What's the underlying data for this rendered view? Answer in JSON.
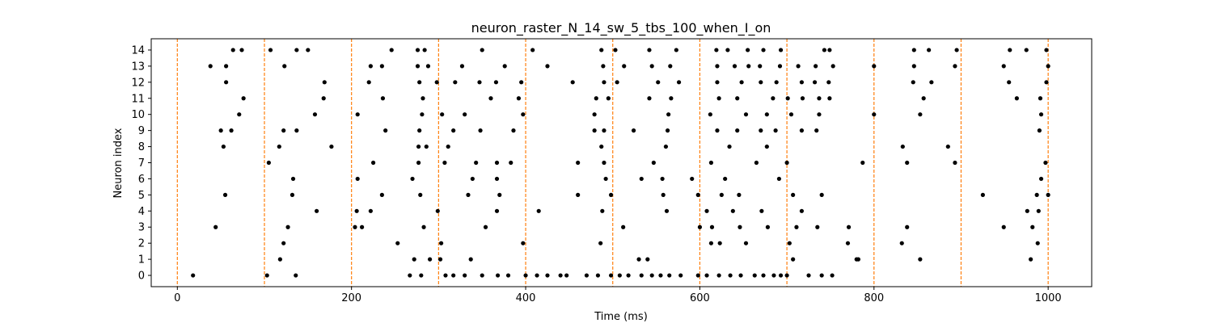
{
  "chart_data": {
    "type": "scatter",
    "title": "neuron_raster_N_14_sw_5_tbs_100_when_I_on",
    "xlabel": "Time (ms)",
    "ylabel": "Neuron index",
    "xlim": [
      -30,
      1050
    ],
    "ylim": [
      -0.7,
      14.7
    ],
    "x_ticks": [
      "0",
      "200",
      "400",
      "600",
      "800",
      "1000"
    ],
    "y_ticks": [
      "0",
      "1",
      "2",
      "3",
      "4",
      "5",
      "6",
      "7",
      "8",
      "9",
      "10",
      "11",
      "12",
      "13",
      "14"
    ],
    "grid": false,
    "marker_color": "#000000",
    "vline_color": "#ff7f0e",
    "vlines": [
      0,
      100,
      200,
      300,
      400,
      500,
      600,
      700,
      800,
      900,
      1000
    ],
    "series": [
      {
        "neuron": 0,
        "times": [
          18,
          103,
          136,
          267,
          280,
          308,
          317,
          330,
          350,
          368,
          380,
          400,
          413,
          425,
          440,
          447,
          470,
          483,
          498,
          508,
          518,
          533,
          545,
          555,
          565,
          578,
          598,
          608,
          622,
          635,
          647,
          663,
          673,
          685,
          693,
          700,
          725,
          740,
          752
        ]
      },
      {
        "neuron": 1,
        "times": [
          118,
          272,
          290,
          302,
          337,
          530,
          540,
          707,
          782,
          780,
          853,
          980
        ]
      },
      {
        "neuron": 2,
        "times": [
          122,
          253,
          303,
          397,
          486,
          613,
          623,
          653,
          703,
          770,
          832,
          988
        ]
      },
      {
        "neuron": 3,
        "times": [
          44,
          127,
          204,
          212,
          283,
          354,
          512,
          600,
          614,
          646,
          678,
          711,
          735,
          771,
          838,
          949,
          982
        ]
      },
      {
        "neuron": 4,
        "times": [
          160,
          206,
          222,
          299,
          367,
          415,
          488,
          562,
          608,
          638,
          671,
          717,
          976,
          989
        ]
      },
      {
        "neuron": 5,
        "times": [
          55,
          132,
          235,
          279,
          334,
          370,
          460,
          498,
          558,
          598,
          625,
          645,
          707,
          740,
          925,
          987,
          1000
        ]
      },
      {
        "neuron": 6,
        "times": [
          133,
          207,
          270,
          339,
          367,
          492,
          533,
          557,
          591,
          629,
          691,
          992
        ]
      },
      {
        "neuron": 7,
        "times": [
          105,
          225,
          277,
          307,
          343,
          367,
          383,
          460,
          490,
          547,
          613,
          665,
          700,
          787,
          838,
          893,
          997
        ]
      },
      {
        "neuron": 8,
        "times": [
          53,
          117,
          177,
          277,
          286,
          311,
          487,
          561,
          634,
          677,
          833,
          885
        ]
      },
      {
        "neuron": 9,
        "times": [
          50,
          62,
          122,
          137,
          239,
          278,
          317,
          348,
          386,
          479,
          490,
          524,
          563,
          620,
          643,
          670,
          687,
          717,
          734,
          990
        ]
      },
      {
        "neuron": 10,
        "times": [
          71,
          158,
          207,
          281,
          304,
          330,
          397,
          479,
          564,
          612,
          653,
          677,
          705,
          737,
          800,
          853,
          992
        ]
      },
      {
        "neuron": 11,
        "times": [
          76,
          168,
          236,
          282,
          360,
          392,
          481,
          495,
          542,
          567,
          622,
          643,
          684,
          701,
          718,
          737,
          749,
          857,
          964,
          991
        ]
      },
      {
        "neuron": 12,
        "times": [
          56,
          169,
          220,
          278,
          298,
          319,
          347,
          366,
          395,
          454,
          490,
          505,
          552,
          576,
          620,
          648,
          670,
          688,
          717,
          732,
          748,
          845,
          866,
          955,
          998
        ]
      },
      {
        "neuron": 13,
        "times": [
          38,
          56,
          123,
          222,
          235,
          276,
          288,
          327,
          376,
          425,
          489,
          513,
          545,
          566,
          620,
          640,
          656,
          669,
          692,
          713,
          733,
          753,
          800,
          846,
          893,
          949,
          1000
        ]
      },
      {
        "neuron": 14,
        "times": [
          64,
          74,
          107,
          137,
          150,
          246,
          276,
          284,
          350,
          408,
          487,
          503,
          542,
          573,
          619,
          632,
          655,
          673,
          693,
          743,
          749,
          846,
          863,
          895,
          956,
          975,
          998
        ]
      }
    ]
  }
}
